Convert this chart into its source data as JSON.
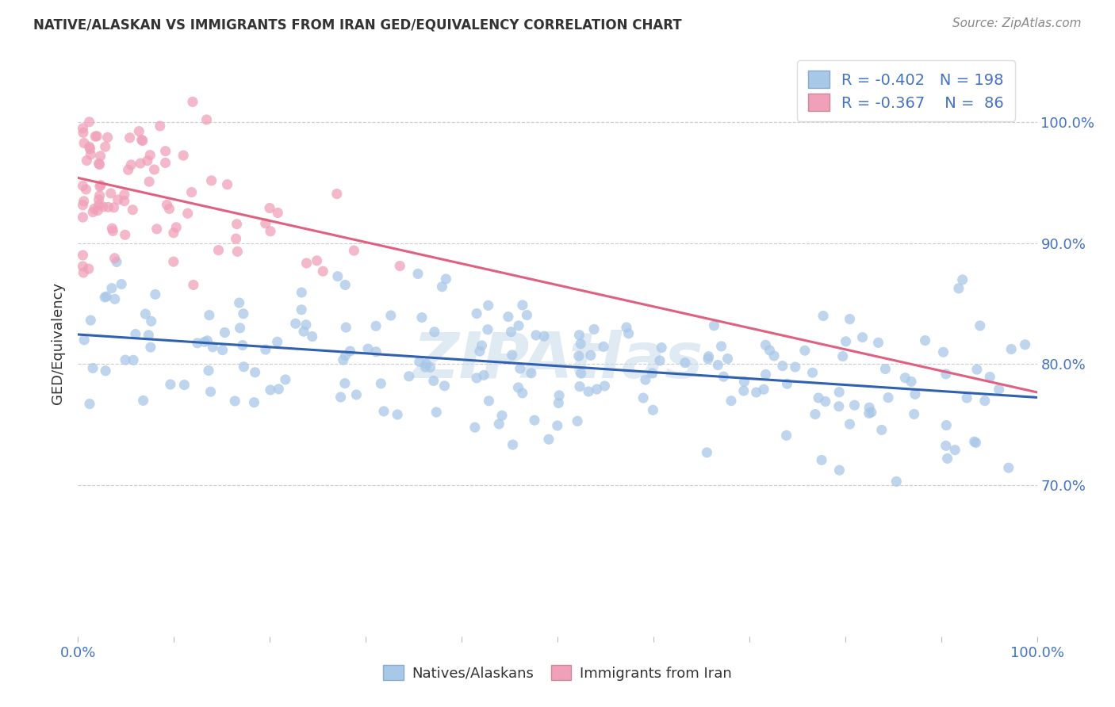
{
  "title": "NATIVE/ALASKAN VS IMMIGRANTS FROM IRAN GED/EQUIVALENCY CORRELATION CHART",
  "source": "Source: ZipAtlas.com",
  "ylabel": "GED/Equivalency",
  "xlim": [
    0.0,
    1.0
  ],
  "ylim": [
    0.575,
    1.06
  ],
  "blue_R": -0.402,
  "blue_N": 198,
  "pink_R": -0.367,
  "pink_N": 86,
  "blue_color": "#a8c8e8",
  "pink_color": "#f0a0b8",
  "blue_line_color": "#3060b0",
  "pink_line_color": "#e06080",
  "watermark": "ZIPAtlas",
  "watermark_color": "#c8daea",
  "legend_blue_label": "Natives/Alaskans",
  "legend_pink_label": "Immigrants from Iran",
  "ytick_values": [
    0.7,
    0.8,
    0.9,
    1.0
  ],
  "ytick_labels": [
    "70.0%",
    "80.0%",
    "90.0%",
    "100.0%"
  ],
  "title_fontsize": 12,
  "tick_fontsize": 13
}
